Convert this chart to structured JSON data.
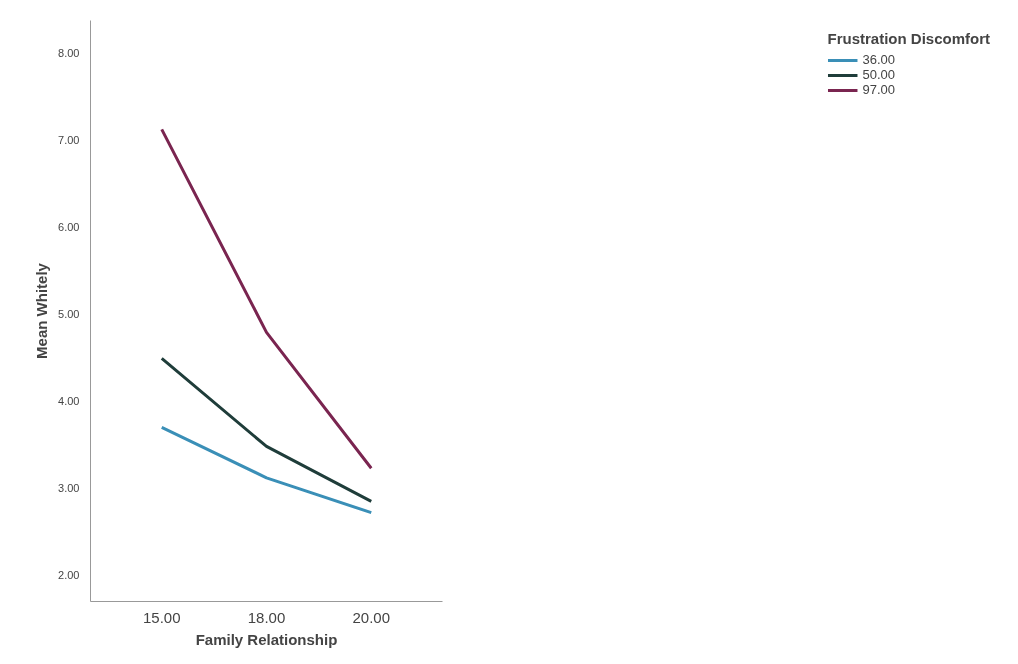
{
  "chart_data": {
    "type": "line",
    "xlabel": "Family Relationship",
    "ylabel": "Mean Whitely",
    "legend_title": "Frustration Discomfort",
    "categories": [
      "15.00",
      "18.00",
      "20.00"
    ],
    "series": [
      {
        "name": "36.00",
        "color": "#3a8fb7",
        "values": [
          3.7,
          3.12,
          2.72
        ]
      },
      {
        "name": "50.00",
        "color": "#1f3d3a",
        "values": [
          4.49,
          3.48,
          2.85
        ]
      },
      {
        "name": "97.00",
        "color": "#7a2550",
        "values": [
          7.12,
          4.79,
          3.23
        ]
      }
    ],
    "ylim": [
      1.7,
      8.37
    ],
    "yticks": [
      {
        "value": 2,
        "label": "2.00"
      },
      {
        "value": 3,
        "label": "3.00"
      },
      {
        "value": 4,
        "label": "4.00"
      },
      {
        "value": 5,
        "label": "5.00"
      },
      {
        "value": 6,
        "label": "6.00"
      },
      {
        "value": 7,
        "label": "7.00"
      },
      {
        "value": 8,
        "label": "8.00"
      }
    ],
    "grid": false,
    "legend": "top right",
    "marker": "none",
    "line_style": "solid"
  }
}
